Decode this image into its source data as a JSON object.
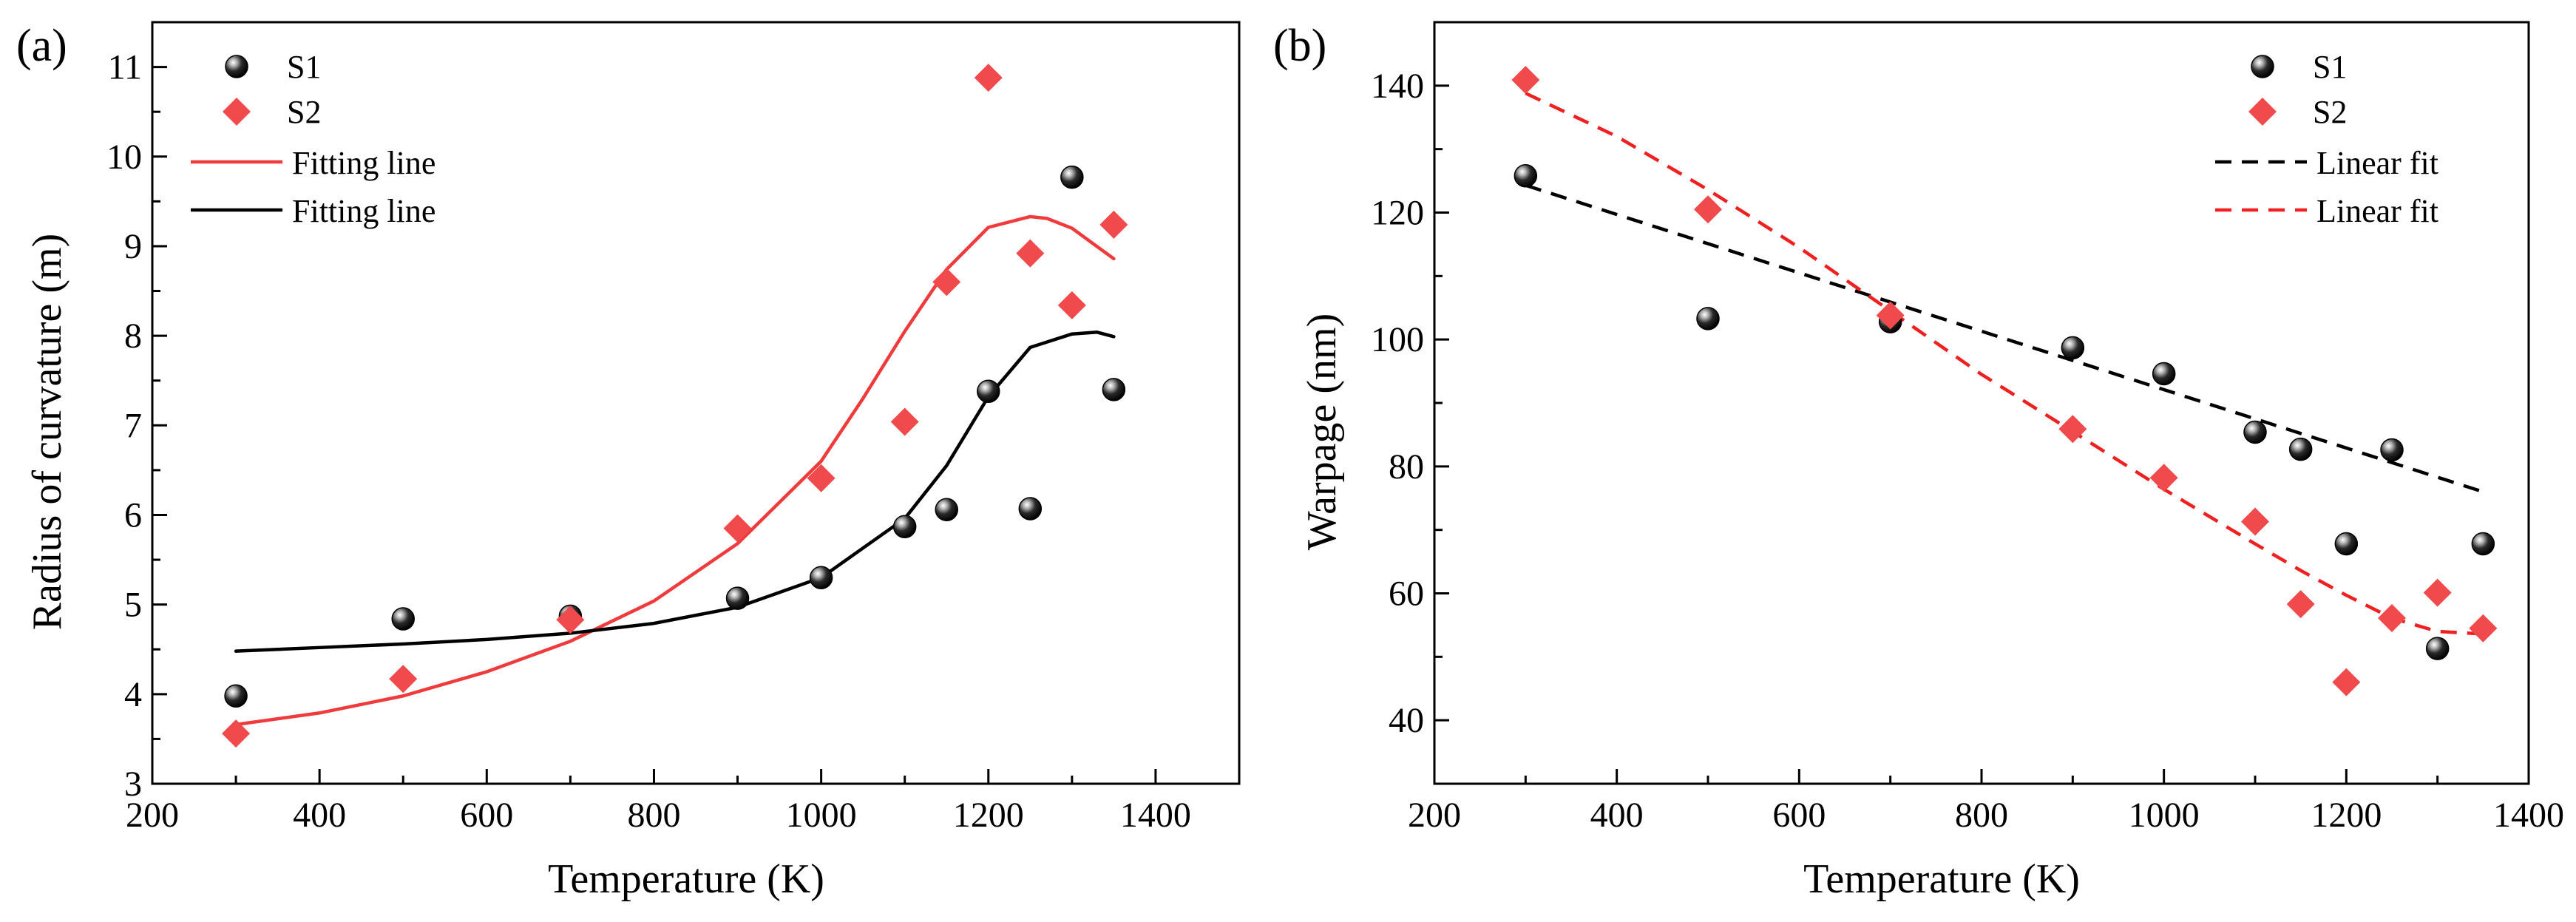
{
  "chart_data": [
    {
      "panel_label": "(a)",
      "type": "scatter",
      "xlabel": "Temperature (K)",
      "ylabel": "Radius of curvature (m)",
      "xlim": [
        200,
        1500
      ],
      "ylim": [
        3,
        11.5
      ],
      "xticks": [
        200,
        400,
        600,
        800,
        1000,
        1200,
        1400
      ],
      "yticks": [
        3,
        4,
        5,
        6,
        7,
        8,
        9,
        10,
        11
      ],
      "legend_position": "top-left",
      "series": [
        {
          "name": "S1",
          "marker": "sphere",
          "color": "#000000",
          "x": [
            300,
            500,
            700,
            900,
            1000,
            1100,
            1150,
            1200,
            1250,
            1300,
            1350
          ],
          "y": [
            3.98,
            4.84,
            4.87,
            5.07,
            5.3,
            5.87,
            6.06,
            7.38,
            6.07,
            9.77,
            7.4
          ]
        },
        {
          "name": "S2",
          "marker": "diamond",
          "color": "#f04a4c",
          "x": [
            300,
            500,
            700,
            900,
            1000,
            1100,
            1150,
            1200,
            1250,
            1300,
            1350
          ],
          "y": [
            3.56,
            4.17,
            4.83,
            5.85,
            6.41,
            7.04,
            8.6,
            10.88,
            8.92,
            8.34,
            9.24
          ]
        },
        {
          "name": "Fitting line",
          "line": "solid",
          "color": "#ef3b3b",
          "x": [
            300,
            400,
            500,
            600,
            700,
            800,
            900,
            1000,
            1050,
            1100,
            1150,
            1200,
            1250,
            1270,
            1300,
            1350
          ],
          "y": [
            3.66,
            3.79,
            3.98,
            4.25,
            4.59,
            5.04,
            5.68,
            6.6,
            7.3,
            8.05,
            8.74,
            9.21,
            9.33,
            9.31,
            9.2,
            8.86
          ]
        },
        {
          "name": "Fitting line",
          "line": "solid",
          "color": "#000000",
          "x": [
            300,
            400,
            500,
            600,
            700,
            800,
            900,
            1000,
            1100,
            1150,
            1200,
            1250,
            1300,
            1330,
            1350
          ],
          "y": [
            4.48,
            4.52,
            4.56,
            4.61,
            4.68,
            4.79,
            4.97,
            5.3,
            5.96,
            6.55,
            7.32,
            7.87,
            8.02,
            8.04,
            7.99
          ]
        }
      ]
    },
    {
      "panel_label": "(b)",
      "type": "scatter",
      "xlabel": "Temperature (K)",
      "ylabel": "Warpage (nm)",
      "xlim": [
        200,
        1400
      ],
      "ylim": [
        30,
        150
      ],
      "xticks": [
        200,
        400,
        600,
        800,
        1000,
        1200,
        1400
      ],
      "yticks": [
        40,
        60,
        80,
        100,
        120,
        140
      ],
      "legend_position": "top-right",
      "series": [
        {
          "name": "S1",
          "marker": "sphere",
          "color": "#000000",
          "x": [
            300,
            500,
            700,
            900,
            1000,
            1100,
            1150,
            1200,
            1250,
            1300,
            1350
          ],
          "y": [
            125.8,
            103.3,
            102.8,
            98.7,
            94.6,
            85.4,
            82.7,
            67.8,
            82.6,
            51.3,
            67.8
          ]
        },
        {
          "name": "S2",
          "marker": "diamond",
          "color": "#f04a4c",
          "x": [
            300,
            500,
            700,
            900,
            1000,
            1100,
            1150,
            1200,
            1250,
            1300,
            1350
          ],
          "y": [
            140.9,
            120.5,
            103.8,
            85.9,
            78.2,
            71.3,
            58.3,
            46.0,
            56.1,
            60.1,
            54.5
          ]
        },
        {
          "name": "Linear fit",
          "line": "dashed",
          "color": "#000000",
          "x": [
            300,
            1350
          ],
          "y": [
            124.3,
            76.0
          ]
        },
        {
          "name": "Linear fit",
          "line": "dashed",
          "color": "#ef2020",
          "x": [
            300,
            400,
            500,
            600,
            700,
            800,
            900,
            1000,
            1100,
            1150,
            1200,
            1250,
            1300,
            1350
          ],
          "y": [
            138.8,
            132.0,
            123.6,
            114.5,
            104.5,
            94.5,
            85.5,
            76.4,
            67.8,
            63.6,
            59.7,
            56.1,
            54.0,
            53.6
          ]
        }
      ]
    }
  ]
}
